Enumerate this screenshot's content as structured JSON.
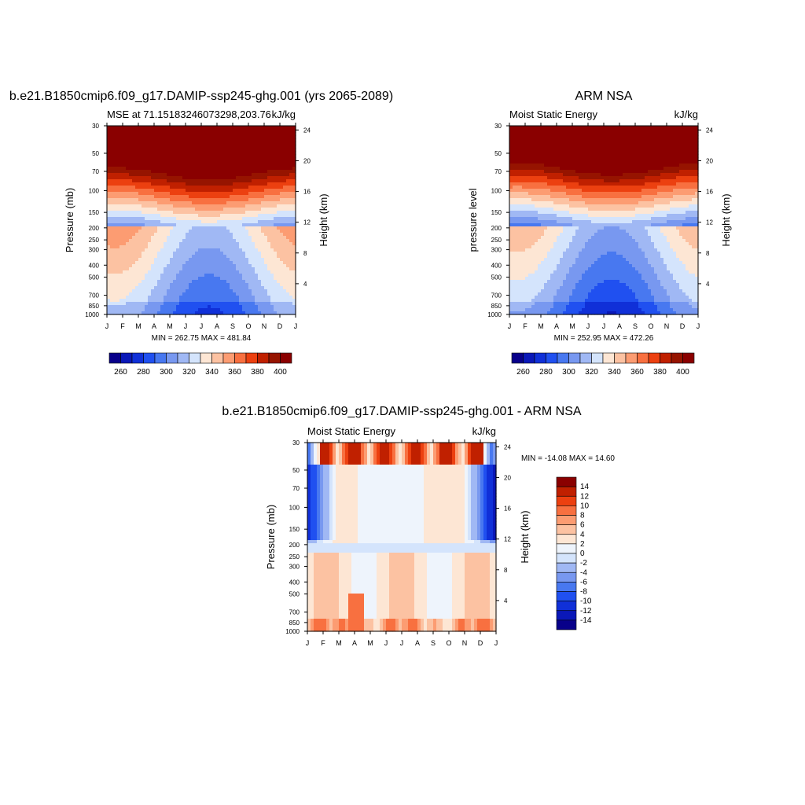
{
  "chart_data": [
    {
      "type": "heatmap",
      "title": "b.e21.B1850cmip6.f09_g17.DAMIP-ssp245-ghg.001 (yrs 2065-2089)",
      "left_label": "MSE at 71.15183246073298,203.76",
      "right_label": "kJ/kg",
      "ylabel": "Pressure (mb)",
      "ylabel_right": "Height (km)",
      "min_max": "MIN = 262.75 MAX = 481.84",
      "x_ticks": [
        "J",
        "F",
        "M",
        "A",
        "M",
        "J",
        "J",
        "A",
        "S",
        "O",
        "N",
        "D",
        "J"
      ],
      "y_ticks": [
        "30",
        "50",
        "70",
        "100",
        "150",
        "200",
        "250",
        "300",
        "400",
        "500",
        "700",
        "850",
        "1000"
      ],
      "y_ticks_right": [
        "24",
        "20",
        "16",
        "12",
        "8",
        "4"
      ],
      "colorbar_ticks": [
        "260",
        "280",
        "300",
        "320",
        "340",
        "360",
        "380",
        "400"
      ],
      "colorbar_orientation": "horizontal",
      "levels": [
        260,
        270,
        280,
        290,
        300,
        310,
        320,
        330,
        340,
        350,
        360,
        370,
        380,
        390,
        400
      ],
      "min": 262.75,
      "max": 481.84,
      "colors": [
        "#08008a",
        "#0a18b8",
        "#1030d8",
        "#2050f0",
        "#4878f0",
        "#7898f0",
        "#a0b8f4",
        "#d4e4fc",
        "#fde6d4",
        "#fcc2a2",
        "#fc9c72",
        "#f87040",
        "#ec4010",
        "#c02000",
        "#961400",
        "#8a0000"
      ]
    },
    {
      "type": "heatmap",
      "title": "ARM NSA",
      "left_label": "Moist Static Energy",
      "right_label": "kJ/kg",
      "ylabel": "pressure level",
      "ylabel_right": "Height (km)",
      "min_max": "MIN = 252.95 MAX = 472.26",
      "x_ticks": [
        "J",
        "F",
        "M",
        "A",
        "M",
        "J",
        "J",
        "A",
        "S",
        "O",
        "N",
        "D",
        "J"
      ],
      "y_ticks": [
        "30",
        "50",
        "70",
        "100",
        "150",
        "200",
        "250",
        "300",
        "400",
        "500",
        "700",
        "850",
        "1000"
      ],
      "y_ticks_right": [
        "24",
        "20",
        "16",
        "12",
        "8",
        "4"
      ],
      "colorbar_ticks": [
        "260",
        "280",
        "300",
        "320",
        "340",
        "360",
        "380",
        "400"
      ],
      "colorbar_orientation": "horizontal",
      "levels": [
        260,
        270,
        280,
        290,
        300,
        310,
        320,
        330,
        340,
        350,
        360,
        370,
        380,
        390,
        400
      ],
      "min": 252.95,
      "max": 472.26,
      "colors": [
        "#08008a",
        "#0a18b8",
        "#1030d8",
        "#2050f0",
        "#4878f0",
        "#7898f0",
        "#a0b8f4",
        "#d4e4fc",
        "#fde6d4",
        "#fcc2a2",
        "#fc9c72",
        "#f87040",
        "#ec4010",
        "#c02000",
        "#961400",
        "#8a0000"
      ]
    },
    {
      "type": "heatmap",
      "title": "b.e21.B1850cmip6.f09_g17.DAMIP-ssp245-ghg.001 - ARM NSA",
      "left_label": "Moist Static Energy",
      "right_label": "kJ/kg",
      "ylabel": "Pressure (mb)",
      "ylabel_right": "Height (km)",
      "min_max": "MIN = -14.08 MAX =  14.60",
      "x_ticks": [
        "J",
        "F",
        "M",
        "A",
        "M",
        "J",
        "J",
        "A",
        "S",
        "O",
        "N",
        "D",
        "J"
      ],
      "y_ticks": [
        "30",
        "50",
        "70",
        "100",
        "150",
        "200",
        "250",
        "300",
        "400",
        "500",
        "700",
        "850",
        "1000"
      ],
      "y_ticks_right": [
        "24",
        "20",
        "16",
        "12",
        "8",
        "4"
      ],
      "colorbar_ticks": [
        "14",
        "12",
        "10",
        "8",
        "6",
        "4",
        "2",
        "0",
        "-2",
        "-4",
        "-6",
        "-8",
        "-10",
        "-12",
        "-14"
      ],
      "colorbar_orientation": "vertical",
      "levels": [
        -14,
        -12,
        -10,
        -8,
        -6,
        -4,
        -2,
        0,
        2,
        4,
        6,
        8,
        10,
        12,
        14
      ],
      "min": -14.08,
      "max": 14.6,
      "colors": [
        "#08008a",
        "#0a18b8",
        "#1030d8",
        "#2050f0",
        "#4878f0",
        "#7898f0",
        "#a0b8f4",
        "#d4e4fc",
        "#eef4fc",
        "#fde6d4",
        "#fcc2a2",
        "#fc9c72",
        "#f87040",
        "#ec4010",
        "#c02000",
        "#8a0000"
      ]
    }
  ]
}
